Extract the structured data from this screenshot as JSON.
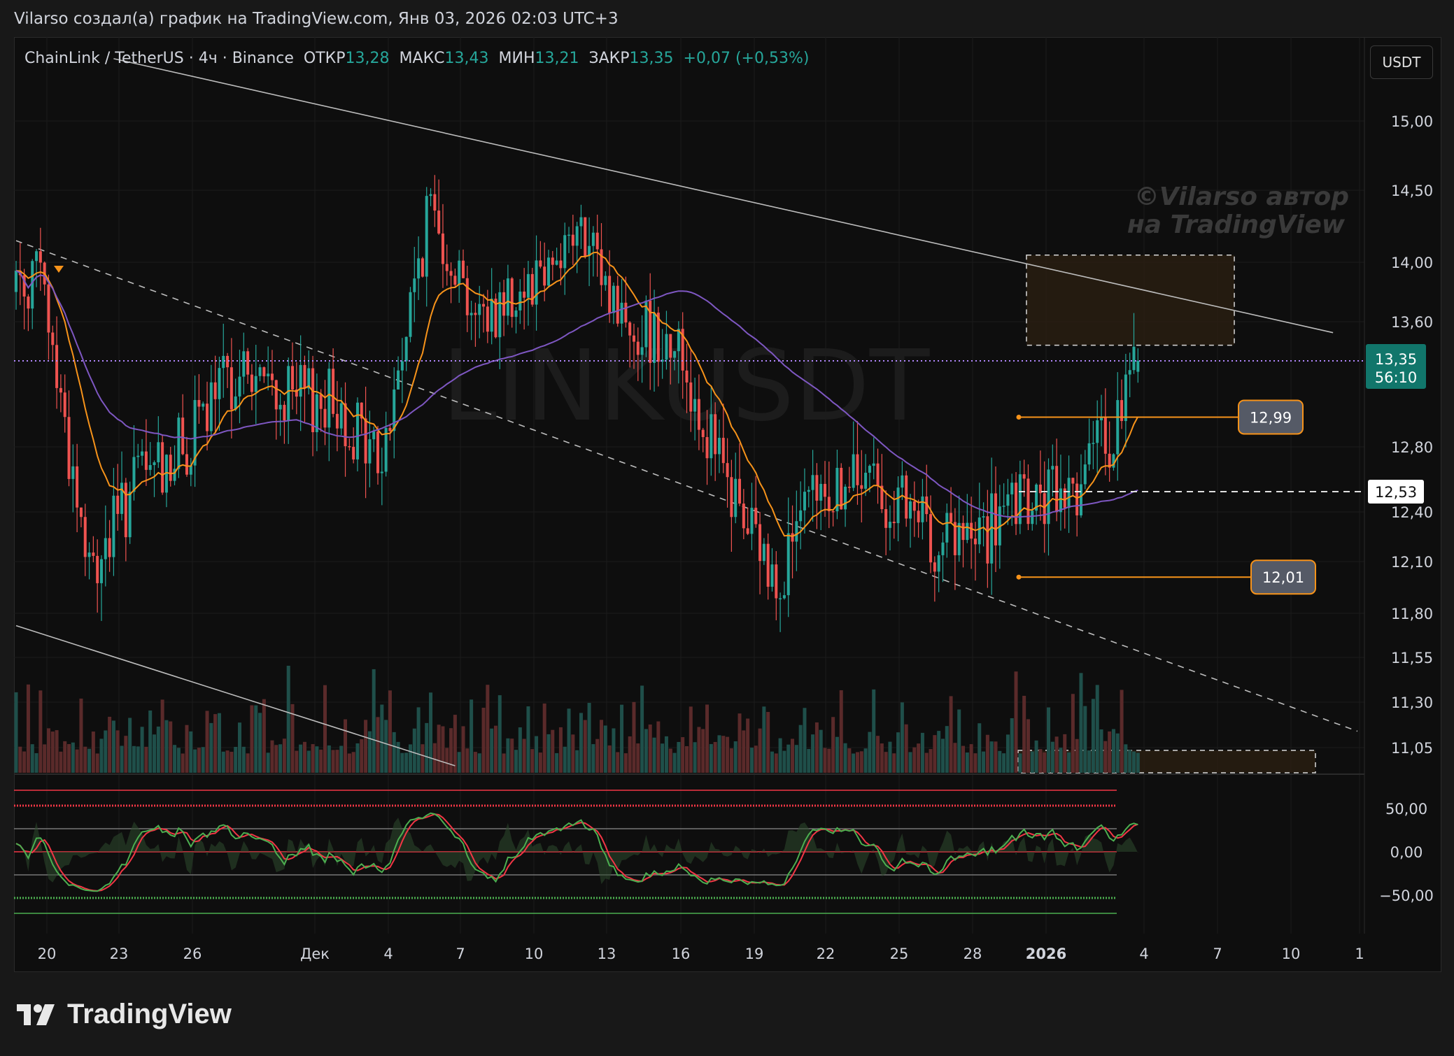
{
  "header": {
    "title": "Vilarso создал(а) график на TradingView.com, Янв 03, 2026 02:03 UTC+3"
  },
  "legend": {
    "symbol": "ChainLink / TetherUS · 4ч · Binance",
    "open_label": "ОТКР",
    "open": "13,28",
    "high_label": "МАКС",
    "high": "13,43",
    "low_label": "МИН",
    "low": "13,21",
    "close_label": "ЗАКР",
    "close": "13,35",
    "change": "+0,07 (+0,53%)"
  },
  "currency_button": "USDT",
  "watermark": "LINKUSDT",
  "author_watermark": [
    "©Vilarso автор",
    "на TradingView"
  ],
  "logo_text": "TradingView",
  "colors": {
    "up": "#26a69a",
    "down": "#ef5350",
    "ema": "#f7931a",
    "ma": "#7e57c2",
    "price_line": "#b388ff",
    "osc_k": "#4caf50",
    "osc_d": "#f23645",
    "zone": "#2a1f12"
  },
  "price_axis": {
    "ticks": [
      "15,00",
      "14,50",
      "14,00",
      "13,60",
      "12,80",
      "12,40",
      "12,10",
      "11,80",
      "11,55",
      "11,30",
      "11,05"
    ],
    "current_price": "13,35",
    "countdown": "56:10",
    "marker_level": "12,53"
  },
  "osc_axis": {
    "ticks": [
      "50,00",
      "0,00",
      "−50,00"
    ]
  },
  "time_axis": {
    "ticks": [
      "20",
      "23",
      "26",
      "Дек",
      "4",
      "7",
      "10",
      "13",
      "16",
      "19",
      "22",
      "25",
      "28",
      "2026",
      "4",
      "7",
      "10",
      "1"
    ]
  },
  "alerts": [
    {
      "label": "12,99",
      "price": 12.99
    },
    {
      "label": "12,01",
      "price": 12.01
    }
  ],
  "chart_data": {
    "type": "candlestick",
    "symbol": "LINKUSDT",
    "timeframe": "4h",
    "x_start": "2025-11-18",
    "x_end": "2026-01-03",
    "ylim": [
      10.95,
      15.4
    ],
    "current_price": 13.35,
    "indicators": [
      "EMA (orange)",
      "MA (purple)",
      "Stochastic RSI"
    ],
    "trendlines": [
      {
        "name": "resistance",
        "style": "solid",
        "points": [
          [
            "2025-11-22",
            15.45
          ],
          [
            "2026-01-11",
            13.53
          ]
        ]
      },
      {
        "name": "channel",
        "style": "dashed",
        "points": [
          [
            "2025-11-18",
            14.15
          ],
          [
            "2026-01-12",
            11.14
          ]
        ]
      },
      {
        "name": "lower",
        "style": "solid",
        "points": [
          [
            "2025-11-18",
            11.73
          ],
          [
            "2025-12-06",
            10.95
          ]
        ]
      }
    ],
    "zones": [
      {
        "price_from": 13.45,
        "price_to": 14.05,
        "from": "2025-12-31",
        "to": "2026-01-08"
      },
      {
        "price_from": 10.95,
        "price_to": 11.1,
        "from": "2025-12-30",
        "to": "2026-01-11"
      }
    ],
    "oscillator": {
      "levels": [
        80,
        50,
        0,
        -50,
        -80
      ],
      "ylim": [
        -105,
        95
      ]
    },
    "series_points": [
      {
        "name": "close",
        "x": [
          "2025-11-19",
          "2025-11-21",
          "2025-11-23",
          "2025-11-25",
          "2025-11-27",
          "2025-11-29",
          "2025-12-01",
          "2025-12-03",
          "2025-12-05",
          "2025-12-07",
          "2025-12-09",
          "2025-12-11",
          "2025-12-13",
          "2025-12-15",
          "2025-12-17",
          "2025-12-19",
          "2025-12-21",
          "2025-12-23",
          "2025-12-25",
          "2025-12-27",
          "2025-12-29",
          "2025-12-31",
          "2026-01-02",
          "2026-01-03"
        ],
        "y": [
          13.9,
          12.0,
          12.6,
          12.8,
          13.3,
          13.1,
          13.1,
          12.7,
          14.4,
          13.6,
          13.9,
          14.2,
          13.6,
          13.5,
          12.6,
          12.0,
          12.5,
          12.6,
          12.3,
          12.2,
          12.4,
          12.5,
          12.9,
          13.35
        ]
      }
    ]
  }
}
